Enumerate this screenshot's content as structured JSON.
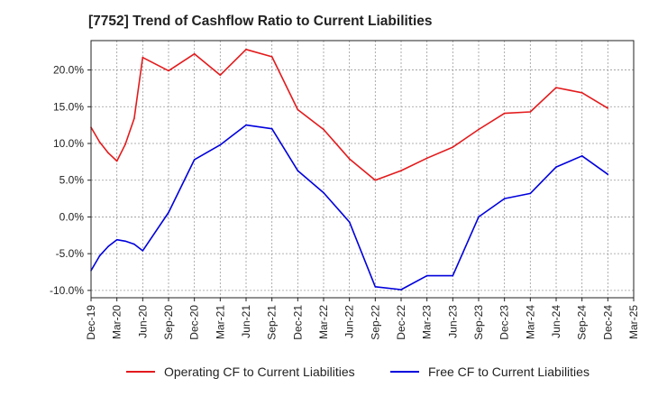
{
  "chart_data": {
    "type": "line",
    "title": "[7752]  Trend of Cashflow Ratio to Current Liabilities",
    "xlabel": "",
    "ylabel": "",
    "x_ticks": [
      "Dec-19",
      "Mar-20",
      "Jun-20",
      "Sep-20",
      "Dec-20",
      "Mar-21",
      "Jun-21",
      "Sep-21",
      "Dec-21",
      "Mar-22",
      "Jun-22",
      "Sep-22",
      "Dec-22",
      "Mar-23",
      "Jun-23",
      "Sep-23",
      "Dec-23",
      "Mar-24",
      "Jun-24",
      "Sep-24",
      "Dec-24",
      "Mar-25"
    ],
    "y_ticks": [
      "20.0%",
      "15.0%",
      "10.0%",
      "5.0%",
      "0.0%",
      "-5.0%",
      "-10.0%"
    ],
    "y_tick_values": [
      20,
      15,
      10,
      5,
      0,
      -5,
      -10
    ],
    "ylim": [
      -11,
      24
    ],
    "grid": true,
    "legend_position": "bottom",
    "series": [
      {
        "name": "Operating CF to Current Liabilities",
        "color": "#e31a1c",
        "points": [
          [
            0,
            12.2
          ],
          [
            0.33,
            10.2
          ],
          [
            0.67,
            8.7
          ],
          [
            1.0,
            7.6
          ],
          [
            1.33,
            9.9
          ],
          [
            1.67,
            13.4
          ],
          [
            2.0,
            21.7
          ],
          [
            3.0,
            19.9
          ],
          [
            4.0,
            22.2
          ],
          [
            5.0,
            19.3
          ],
          [
            6.0,
            22.8
          ],
          [
            7.0,
            21.8
          ],
          [
            8.0,
            14.6
          ],
          [
            9.0,
            11.9
          ],
          [
            10.0,
            7.9
          ],
          [
            11.0,
            5.0
          ],
          [
            12.0,
            6.3
          ],
          [
            13.0,
            8.0
          ],
          [
            14.0,
            9.5
          ],
          [
            15.0,
            11.9
          ],
          [
            16.0,
            14.1
          ],
          [
            17.0,
            14.3
          ],
          [
            18.0,
            17.6
          ],
          [
            19.0,
            16.9
          ],
          [
            20.0,
            14.8
          ]
        ]
      },
      {
        "name": "Free CF to Current Liabilities",
        "color": "#0000dd",
        "points": [
          [
            0,
            -7.3
          ],
          [
            0.33,
            -5.3
          ],
          [
            0.67,
            -4.0
          ],
          [
            1.0,
            -3.1
          ],
          [
            1.33,
            -3.3
          ],
          [
            1.67,
            -3.7
          ],
          [
            2.0,
            -4.6
          ],
          [
            3.0,
            0.6
          ],
          [
            4.0,
            7.8
          ],
          [
            5.0,
            9.8
          ],
          [
            6.0,
            12.5
          ],
          [
            7.0,
            12.0
          ],
          [
            8.0,
            6.3
          ],
          [
            9.0,
            3.3
          ],
          [
            10.0,
            -0.7
          ],
          [
            11.0,
            -9.5
          ],
          [
            12.0,
            -9.9
          ],
          [
            13.0,
            -8.0
          ],
          [
            14.0,
            -8.0
          ],
          [
            15.0,
            0.0
          ],
          [
            16.0,
            2.5
          ],
          [
            17.0,
            3.2
          ],
          [
            18.0,
            6.8
          ],
          [
            19.0,
            8.3
          ],
          [
            20.0,
            5.8
          ]
        ]
      }
    ]
  }
}
